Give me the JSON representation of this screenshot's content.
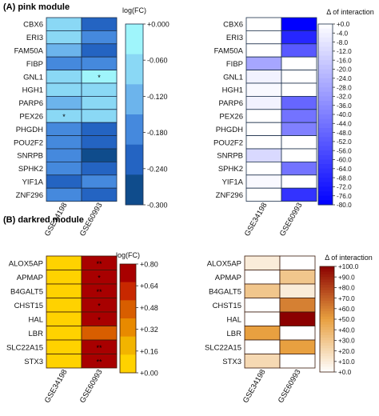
{
  "chart_data": [
    {
      "type": "heatmap",
      "title": "(A) pink module",
      "legend_title": "log(FC)",
      "columns": [
        "GSE34198",
        "GSE60993"
      ],
      "rows": [
        "CBX6",
        "ERI3",
        "FAM50A",
        "FIBP",
        "GNL1",
        "HGH1",
        "PARP6",
        "PEX26",
        "PHGDH",
        "POU2F2",
        "SNRPB",
        "SPHK2",
        "YIF1A",
        "ZNF296"
      ],
      "values": [
        [
          -0.07,
          -0.2
        ],
        [
          -0.07,
          -0.17
        ],
        [
          -0.1,
          -0.2
        ],
        [
          -0.15,
          -0.17
        ],
        [
          -0.06,
          -0.01
        ],
        [
          -0.07,
          -0.05
        ],
        [
          -0.1,
          -0.07
        ],
        [
          -0.05,
          -0.05
        ],
        [
          -0.15,
          -0.22
        ],
        [
          -0.15,
          -0.22
        ],
        [
          -0.17,
          -0.26
        ],
        [
          -0.15,
          -0.2
        ],
        [
          -0.2,
          -0.17
        ],
        [
          -0.15,
          -0.2
        ]
      ],
      "annotations": [
        {
          "row": "GNL1",
          "column": "GSE60993",
          "text": "*"
        },
        {
          "row": "PEX26",
          "column": "GSE34198",
          "text": "*"
        }
      ],
      "scale_range": [
        -0.3,
        0.0
      ],
      "scale_ticks": [
        "+0.000",
        "-0.060",
        "-0.120",
        "-0.180",
        "-0.240",
        "-0.300"
      ],
      "scale_colors": [
        "#9ff5fb",
        "#8ad8f5",
        "#6cb4ec",
        "#4589dd",
        "#2464c2",
        "#0f4c8c"
      ],
      "border_color": "#1b2f4a"
    },
    {
      "type": "heatmap",
      "title": "",
      "legend_title": "Δ of interaction",
      "columns": [
        "GSE34198",
        "GSE60993"
      ],
      "rows": [
        "CBX6",
        "ERI3",
        "FAM50A",
        "FIBP",
        "GNL1",
        "HGH1",
        "PARP6",
        "PEX26",
        "PHGDH",
        "POU2F2",
        "SNRPB",
        "SPHK2",
        "YIF1A",
        "ZNF296"
      ],
      "values": [
        [
          0,
          -80
        ],
        [
          0,
          -68
        ],
        [
          0,
          -52
        ],
        [
          -28,
          0
        ],
        [
          -4,
          0
        ],
        [
          -2,
          0
        ],
        [
          -4,
          -48
        ],
        [
          0,
          -44
        ],
        [
          0,
          -40
        ],
        [
          0,
          0
        ],
        [
          -12,
          0
        ],
        [
          0,
          -44
        ],
        [
          -2,
          0
        ],
        [
          0,
          -64
        ]
      ],
      "annotations": [],
      "scale_range": [
        -80,
        0
      ],
      "scale_ticks": [
        "+0.0",
        "-4.0",
        "-8.0",
        "-12.0",
        "-16.0",
        "-20.0",
        "-24.0",
        "-28.0",
        "-32.0",
        "-36.0",
        "-40.0",
        "-44.0",
        "-48.0",
        "-52.0",
        "-56.0",
        "-60.0",
        "-64.0",
        "-68.0",
        "-72.0",
        "-76.0",
        "-80.0"
      ],
      "scale_color_low": "#0000ff",
      "scale_color_high": "#ffffff",
      "border_color": "#1b2f4a"
    },
    {
      "type": "heatmap",
      "title": "(B) darkred module",
      "legend_title": "log(FC)",
      "columns": [
        "GSE34198",
        "GSE60993"
      ],
      "rows": [
        "ALOX5AP",
        "APMAP",
        "B4GALT5",
        "CHST15",
        "HAL",
        "LBR",
        "SLC22A15",
        "STX3"
      ],
      "values": [
        [
          0.05,
          0.72
        ],
        [
          0.05,
          0.72
        ],
        [
          0.05,
          0.72
        ],
        [
          0.05,
          0.72
        ],
        [
          0.05,
          0.72
        ],
        [
          0.05,
          0.48
        ],
        [
          0.05,
          0.72
        ],
        [
          0.05,
          0.72
        ]
      ],
      "annotations": [
        {
          "row": "ALOX5AP",
          "column": "GSE60993",
          "text": "**"
        },
        {
          "row": "APMAP",
          "column": "GSE60993",
          "text": "*"
        },
        {
          "row": "B4GALT5",
          "column": "GSE60993",
          "text": "**"
        },
        {
          "row": "CHST15",
          "column": "GSE60993",
          "text": "*"
        },
        {
          "row": "HAL",
          "column": "GSE60993",
          "text": "*"
        },
        {
          "row": "SLC22A15",
          "column": "GSE60993",
          "text": "**"
        },
        {
          "row": "STX3",
          "column": "GSE60993",
          "text": "**"
        }
      ],
      "scale_range": [
        0.0,
        0.8
      ],
      "scale_ticks": [
        "+0.80",
        "+0.64",
        "+0.48",
        "+0.32",
        "+0.16",
        "+0.00"
      ],
      "scale_colors": [
        "#ffd200",
        "#f2b400",
        "#e88a00",
        "#d85e00",
        "#c82800",
        "#a80000"
      ],
      "border_color": "#3a1a0a"
    },
    {
      "type": "heatmap",
      "title": "",
      "legend_title": "Δ of interaction",
      "columns": [
        "GSE34198",
        "GSE60993"
      ],
      "rows": [
        "ALOX5AP",
        "APMAP",
        "B4GALT5",
        "CHST15",
        "HAL",
        "LBR",
        "SLC22A15",
        "STX3"
      ],
      "values": [
        [
          10,
          0
        ],
        [
          0,
          30
        ],
        [
          30,
          10
        ],
        [
          0,
          60
        ],
        [
          0,
          100
        ],
        [
          50,
          0
        ],
        [
          0,
          50
        ],
        [
          20,
          0
        ]
      ],
      "annotations": [],
      "scale_range": [
        0,
        100
      ],
      "scale_ticks": [
        "+100.0",
        "+90.0",
        "+80.0",
        "+70.0",
        "+60.0",
        "+50.0",
        "+40.0",
        "+30.0",
        "+20.0",
        "+10.0",
        "+0.0"
      ],
      "scale_color_low": "#ffffff",
      "scale_color_mid": "#e8a040",
      "scale_color_high": "#8b0000",
      "border_color": "#3a1a0a"
    }
  ]
}
